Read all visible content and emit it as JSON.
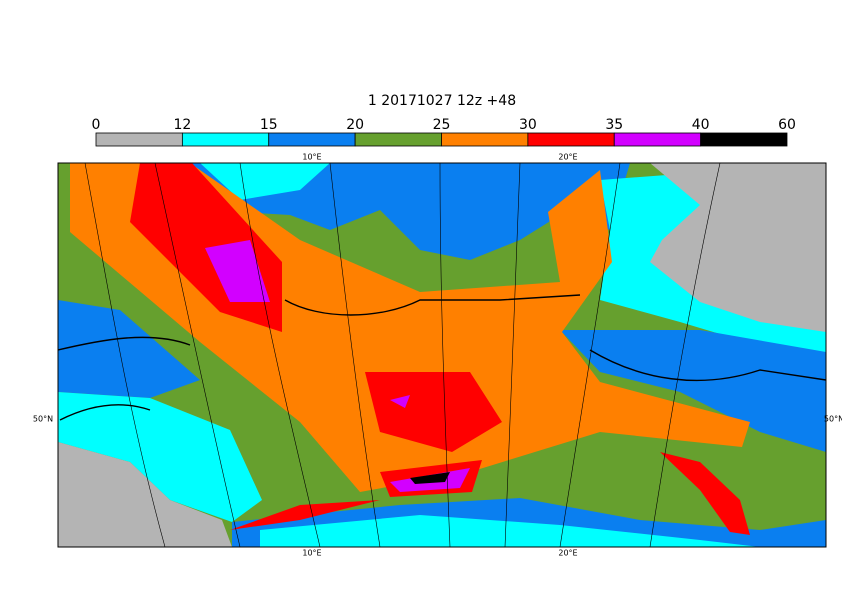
{
  "title": "1 20171027 12z +48",
  "legend": {
    "bounds": [
      0,
      12,
      15,
      20,
      25,
      30,
      35,
      40,
      60
    ],
    "colors": [
      "#b4b4b4",
      "#00ffff",
      "#0a7ff0",
      "#66a02e",
      "#ff8000",
      "#ff0000",
      "#d200ff",
      "#000000"
    ]
  },
  "lon_labels": [
    "10°E",
    "20°E"
  ],
  "lat_labels": [
    "50°N"
  ]
}
